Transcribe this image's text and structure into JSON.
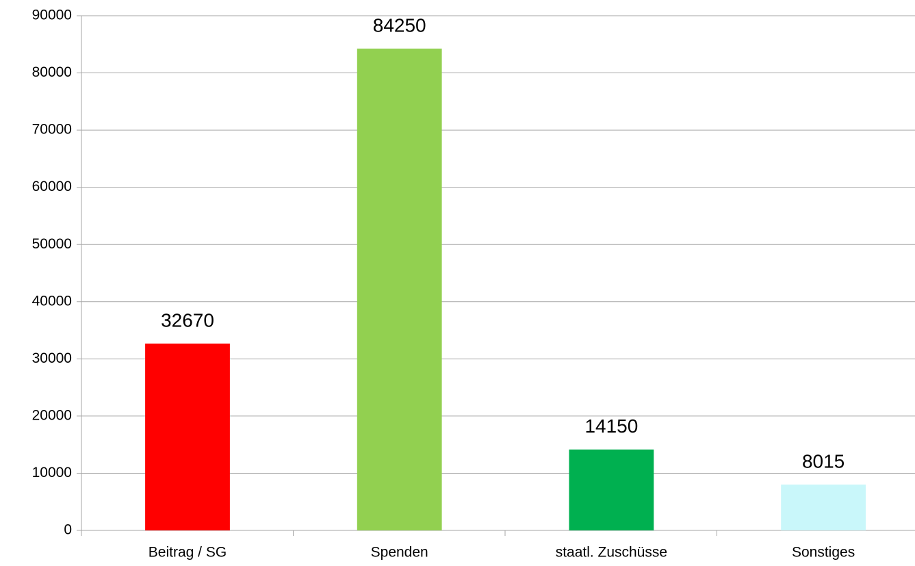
{
  "chart_data": {
    "type": "bar",
    "categories": [
      "Beitrag / SG",
      "Spenden",
      "staatl. Zuschüsse",
      "Sonstiges"
    ],
    "values": [
      32670,
      84250,
      14150,
      8015
    ],
    "colors": [
      "#ff0000",
      "#92d050",
      "#00b050",
      "#c9f7fa"
    ],
    "ylim": [
      0,
      90000
    ],
    "yticks": [
      0,
      10000,
      20000,
      30000,
      40000,
      50000,
      60000,
      70000,
      80000,
      90000
    ],
    "grid": true
  }
}
